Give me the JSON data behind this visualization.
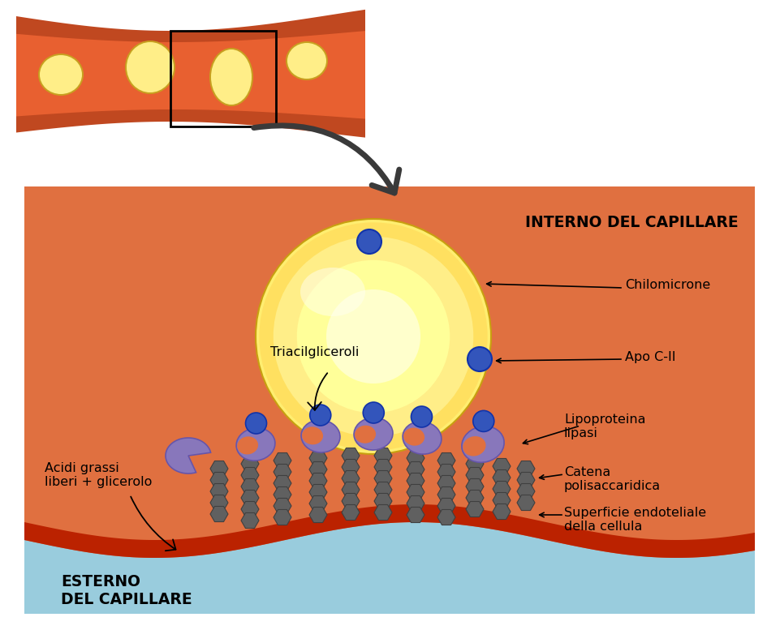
{
  "bg_color": "#FFFFFF",
  "capillary_orange": "#E07040",
  "capillary_dark_orange": "#C04820",
  "capillary_inner": "#E86030",
  "chylomicron_yellow_outer": "#FFE878",
  "chylomicron_yellow_inner": "#FFFF99",
  "chylomicron_center": "#FFFFCC",
  "blue_dot": "#3355BB",
  "blue_dot_dark": "#1133AA",
  "purple_enzyme": "#8877BB",
  "purple_enzyme_dark": "#6655AA",
  "hexagon_color": "#555555",
  "hexagon_edge": "#333333",
  "red_membrane": "#BB2200",
  "blue_exterior": "#99CCDD",
  "orange_bg": "#E07040",
  "label_interno": "INTERNO DEL CAPILLARE",
  "label_esterno": "ESTERNO\nDEL CAPILLARE",
  "label_chilomicrone": "Chilomicrone",
  "label_triacil": "Triacilgliceroli",
  "label_apocii": "Apo C-II",
  "label_lipoproteina": "Lipoproteina\nlipasi",
  "label_catena": "Catena\npolisaccaridica",
  "label_superficie": "Superficie endoteliale\ndella cellula",
  "label_acidi": "Acidi grassi\nliberi + glicerolo"
}
